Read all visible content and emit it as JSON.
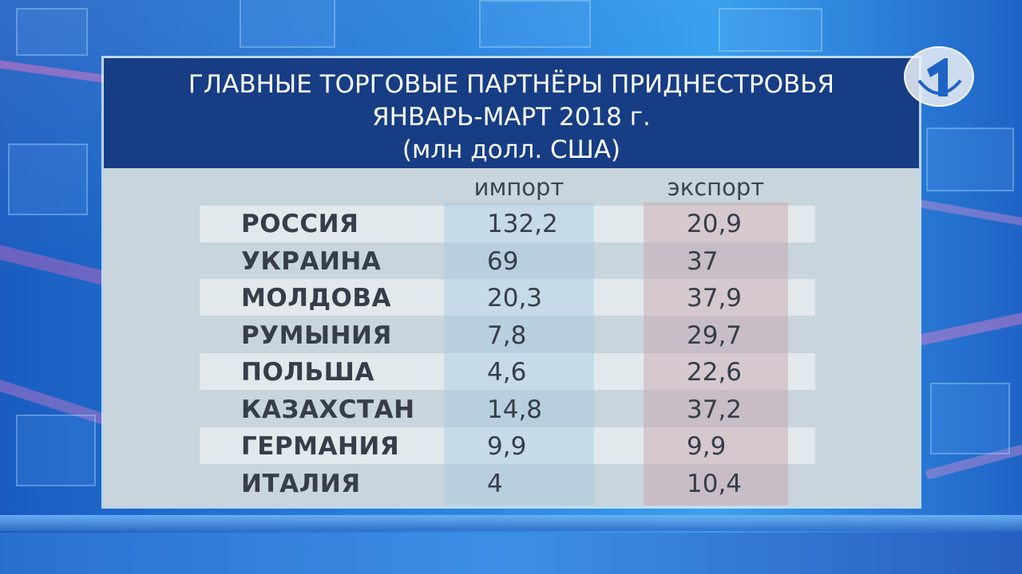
{
  "header": {
    "line1": "ГЛАВНЫЕ ТОРГОВЫЕ ПАРТНЁРЫ ПРИДНЕСТРОВЬЯ",
    "line2": "ЯНВАРЬ-МАРТ 2018 г.",
    "line3": "(млн долл. США)"
  },
  "columns": {
    "import": "импорт",
    "export": "экспорт"
  },
  "rows": [
    {
      "country": "РОССИЯ",
      "import": "132,2",
      "export": "20,9"
    },
    {
      "country": "УКРАИНА",
      "import": "69",
      "export": "37"
    },
    {
      "country": "МОЛДОВА",
      "import": "20,3",
      "export": "37,9"
    },
    {
      "country": "РУМЫНИЯ",
      "import": "7,8",
      "export": "29,7"
    },
    {
      "country": "ПОЛЬША",
      "import": "4,6",
      "export": "22,6"
    },
    {
      "country": "КАЗАХСТАН",
      "import": "14,8",
      "export": "37,2"
    },
    {
      "country": "ГЕРМАНИЯ",
      "import": "9,9",
      "export": "9,9"
    },
    {
      "country": "ИТАЛИЯ",
      "import": "4",
      "export": "10,4"
    }
  ],
  "logo": {
    "icon": "channel-one-logo-icon"
  },
  "colors": {
    "header_bg": "#173d84",
    "panel_bg": "#c9d5dc",
    "text": "#353e49"
  }
}
